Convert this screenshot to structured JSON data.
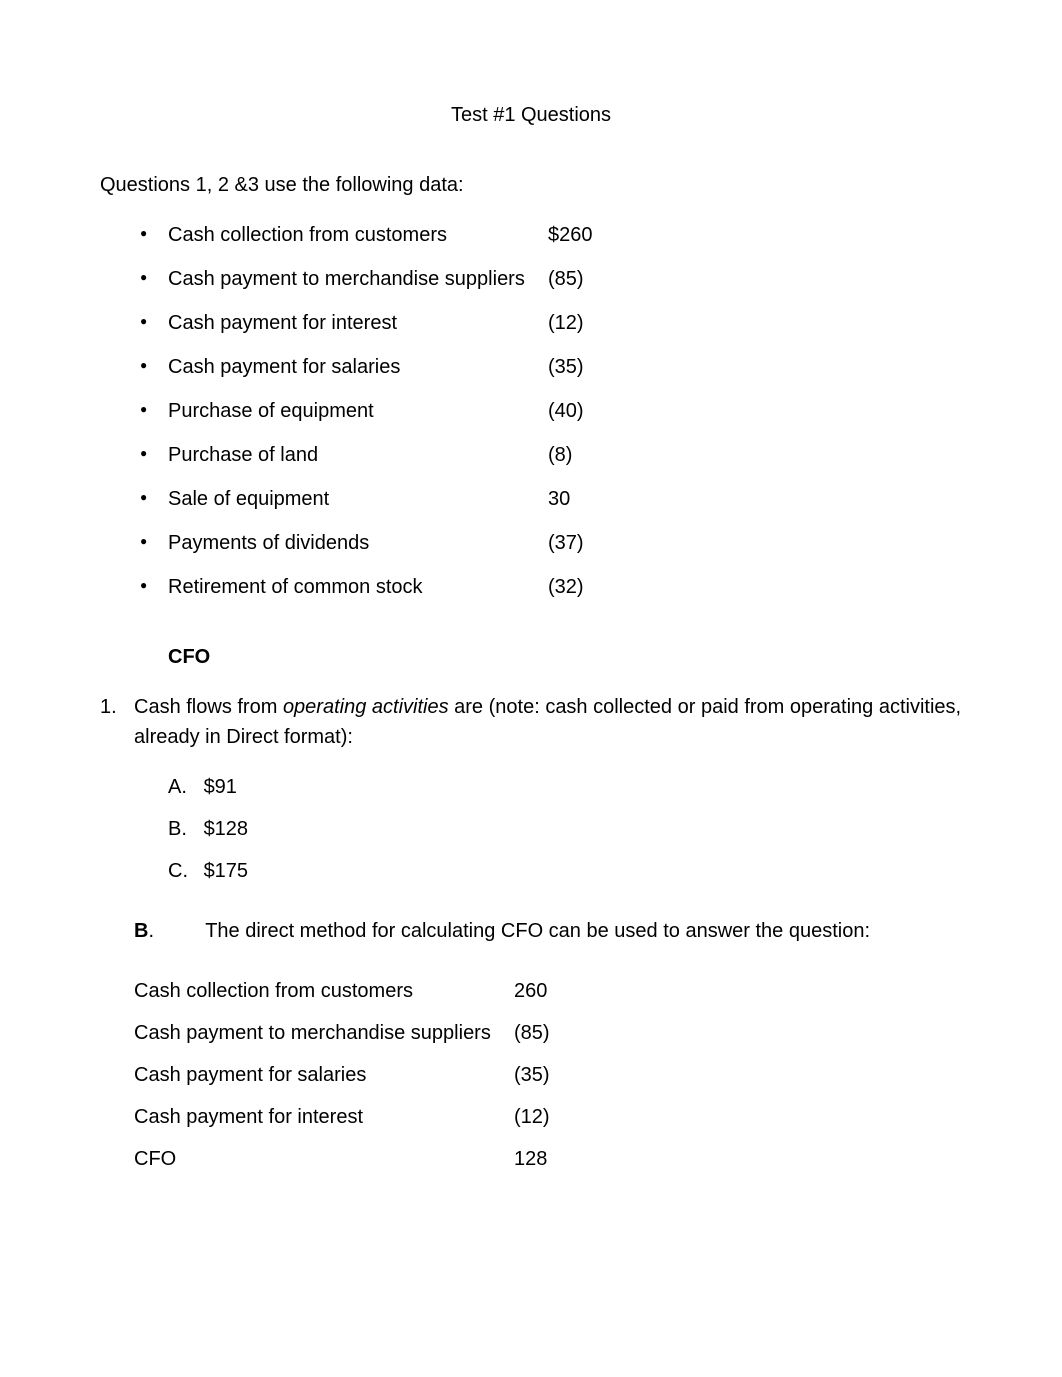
{
  "title": "Test #1 Questions",
  "intro": "Questions 1, 2 &3 use the following data:",
  "data_items": [
    {
      "label": "Cash collection from customers",
      "value": "$260"
    },
    {
      "label": "Cash payment to merchandise suppliers",
      "value": "(85)"
    },
    {
      "label": "Cash payment for interest",
      "value": "(12)"
    },
    {
      "label": "Cash payment for salaries",
      "value": "(35)"
    },
    {
      "label": "Purchase of equipment",
      "value": "(40)"
    },
    {
      "label": "Purchase of land",
      "value": "(8)"
    },
    {
      "label": "Sale of equipment",
      "value": "30"
    },
    {
      "label": "Payments of dividends",
      "value": "(37)"
    },
    {
      "label": "Retirement of common stock",
      "value": "(32)"
    }
  ],
  "cfo_heading": "CFO",
  "question1": {
    "number": "1.",
    "text_part1": "Cash flows from ",
    "text_italic": "operating activities",
    "text_part2": " are (note: cash collected or paid from operating activities, already in Direct format):",
    "options": [
      {
        "letter": "A.",
        "value": "$91"
      },
      {
        "letter": "B.",
        "value": "$128"
      },
      {
        "letter": "C.",
        "value": "$175"
      }
    ],
    "answer_letter": "B",
    "answer_period": ".",
    "answer_text": "The direct method for calculating CFO can be used to answer the question:"
  },
  "calc_rows": [
    {
      "label": "Cash collection from customers",
      "value": "260"
    },
    {
      "label": "Cash payment to merchandise suppliers",
      "value": "(85)"
    },
    {
      "label": "Cash payment for salaries",
      "value": "(35)"
    },
    {
      "label": "Cash payment for interest",
      "value": "(12)"
    },
    {
      "label": "CFO",
      "value": "128"
    }
  ],
  "colors": {
    "background": "#ffffff",
    "text": "#000000"
  },
  "typography": {
    "body_fontsize": 20,
    "font_family": "Arial"
  }
}
